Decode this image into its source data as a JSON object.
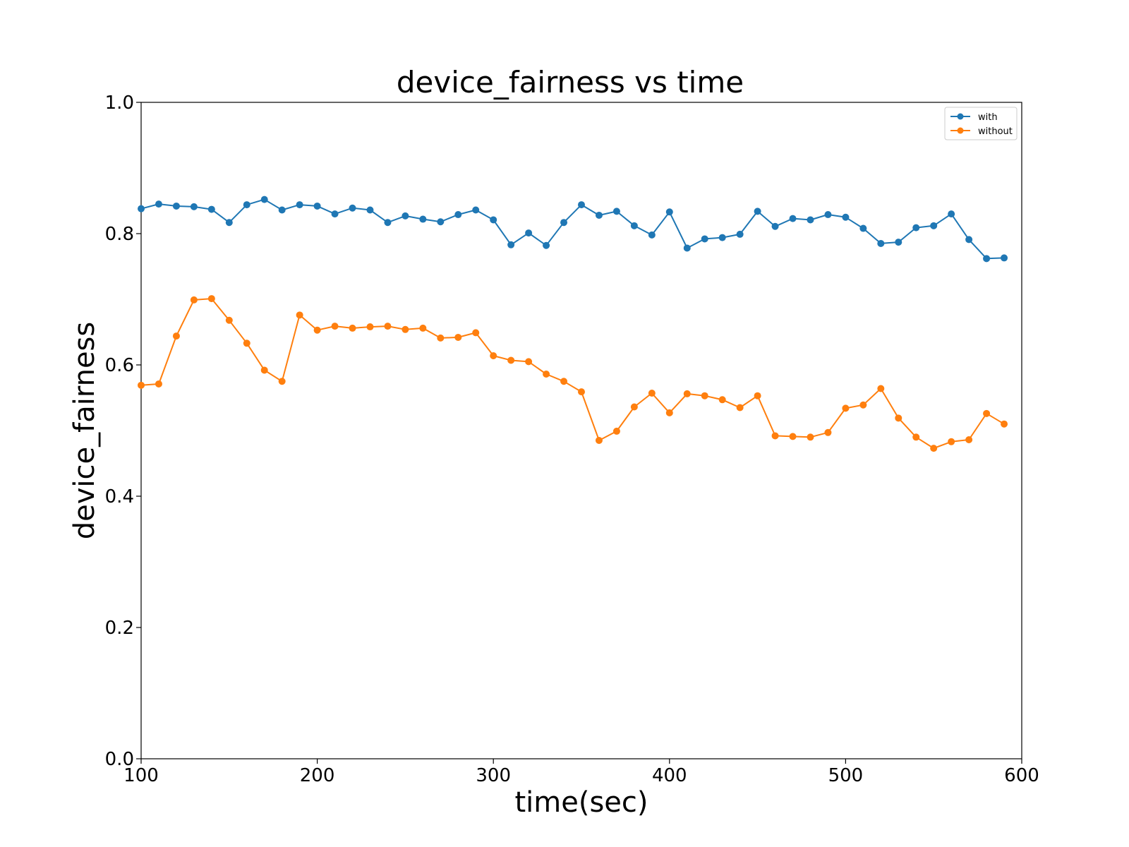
{
  "chart_data": {
    "type": "line",
    "title": "device_fairness vs time",
    "xlabel": "time(sec)",
    "ylabel": "device_fairness",
    "xlim": [
      100,
      600
    ],
    "ylim": [
      0.0,
      1.0
    ],
    "xticks": [
      100,
      200,
      300,
      400,
      500,
      600
    ],
    "yticks": [
      0.0,
      0.2,
      0.4,
      0.6,
      0.8,
      1.0
    ],
    "xtick_labels": [
      "100",
      "200",
      "300",
      "400",
      "500",
      "600"
    ],
    "ytick_labels": [
      "0.0",
      "0.2",
      "0.4",
      "0.6",
      "0.8",
      "1.0"
    ],
    "grid": false,
    "legend_position": "top-right",
    "x": [
      100,
      110,
      120,
      130,
      140,
      150,
      160,
      170,
      180,
      190,
      200,
      210,
      220,
      230,
      240,
      250,
      260,
      270,
      280,
      290,
      300,
      310,
      320,
      330,
      340,
      350,
      360,
      370,
      380,
      390,
      400,
      410,
      420,
      430,
      440,
      450,
      460,
      470,
      480,
      490,
      500,
      510,
      520,
      530,
      540,
      550,
      560,
      570,
      580,
      590
    ],
    "series": [
      {
        "name": "with",
        "color": "#1f77b4",
        "values": [
          0.838,
          0.845,
          0.842,
          0.841,
          0.837,
          0.817,
          0.844,
          0.852,
          0.836,
          0.844,
          0.842,
          0.83,
          0.839,
          0.836,
          0.817,
          0.827,
          0.822,
          0.818,
          0.829,
          0.836,
          0.821,
          0.783,
          0.801,
          0.782,
          0.817,
          0.844,
          0.828,
          0.834,
          0.812,
          0.798,
          0.833,
          0.778,
          0.792,
          0.794,
          0.799,
          0.834,
          0.811,
          0.823,
          0.821,
          0.829,
          0.825,
          0.808,
          0.785,
          0.787,
          0.809,
          0.812,
          0.83,
          0.791,
          0.762,
          0.763
        ]
      },
      {
        "name": "without",
        "color": "#ff7f0e",
        "values": [
          0.569,
          0.571,
          0.644,
          0.699,
          0.701,
          0.668,
          0.633,
          0.592,
          0.575,
          0.676,
          0.653,
          0.659,
          0.656,
          0.658,
          0.659,
          0.654,
          0.656,
          0.641,
          0.642,
          0.649,
          0.614,
          0.607,
          0.605,
          0.586,
          0.575,
          0.559,
          0.485,
          0.499,
          0.536,
          0.557,
          0.527,
          0.556,
          0.553,
          0.547,
          0.535,
          0.553,
          0.492,
          0.491,
          0.49,
          0.497,
          0.534,
          0.539,
          0.564,
          0.519,
          0.49,
          0.473,
          0.483,
          0.486,
          0.526,
          0.51
        ]
      }
    ]
  }
}
